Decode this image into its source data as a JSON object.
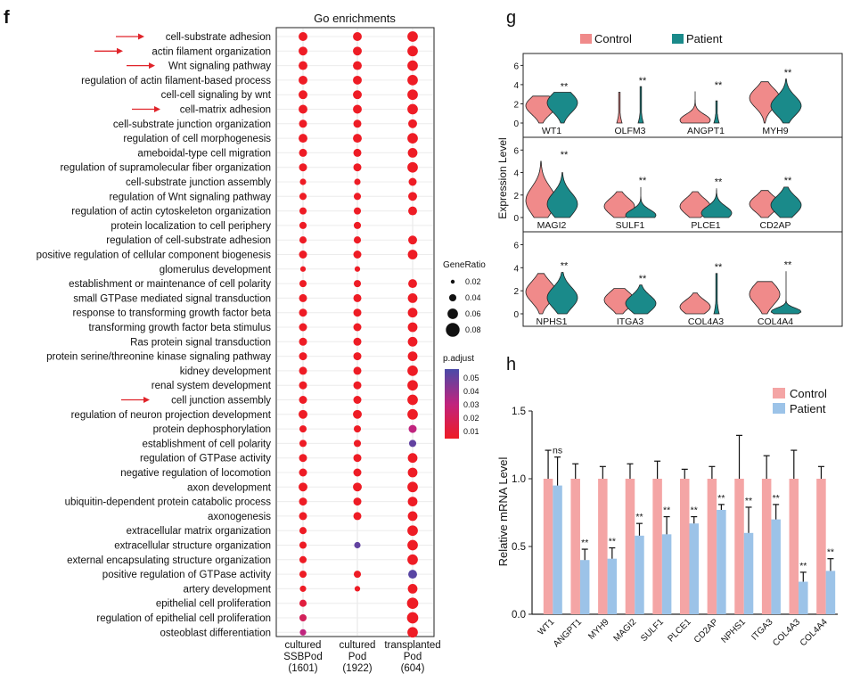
{
  "colors": {
    "control": "#f08a8a",
    "patient": "#1a8a8a",
    "patient_bar": "#9cc3e8",
    "control_bar": "#f4a5a5",
    "dot_low": "#ee1c25",
    "dot_high": "#4a4aa8",
    "arrow": "#e0242a"
  },
  "panel_f": {
    "letter": "f",
    "title": "Go enrichments",
    "columns": [
      {
        "line1": "cultured",
        "line2": "SSBPod",
        "line3": "(1601)"
      },
      {
        "line1": "cultured",
        "line2": "Pod",
        "line3": "(1922)"
      },
      {
        "line1": "transplanted",
        "line2": "Pod",
        "line3": "(604)"
      }
    ],
    "legend_size": {
      "title": "GeneRatio",
      "labels": [
        "0.02",
        "0.04",
        "0.06",
        "0.08"
      ]
    },
    "legend_color": {
      "title": "p.adjust",
      "labels": [
        "0.05",
        "0.04",
        "0.03",
        "0.02",
        "0.01"
      ]
    },
    "chart_data": {
      "type": "dotplot",
      "title": "Go enrichments",
      "terms": [
        "cell-substrate adhesion",
        "actin filament organization",
        "Wnt signaling pathway",
        "regulation of actin filament-based process",
        "cell-cell signaling by wnt",
        "cell-matrix adhesion",
        "cell-substrate junction organization",
        "regulation of cell morphogenesis",
        "ameboidal-type cell migration",
        "regulation of supramolecular fiber organization",
        "cell-substrate junction assembly",
        "regulation of Wnt signaling pathway",
        "regulation of actin cytoskeleton organization",
        "protein localization to cell periphery",
        "regulation of cell-substrate adhesion",
        "positive regulation of cellular component biogenesis",
        "glomerulus development",
        "establishment or maintenance of cell polarity",
        "small GTPase mediated signal transduction",
        "response to transforming growth factor beta",
        "transforming growth factor beta stimulus",
        "Ras protein signal transduction",
        "protein serine/threonine kinase signaling pathway",
        "kidney development",
        "renal system development",
        "cell junction assembly",
        "regulation of neuron projection development",
        "protein dephosphorylation",
        "establishment of cell polarity",
        "regulation of GTPase activity",
        "negative regulation of locomotion",
        "axon development",
        "ubiquitin-dependent protein catabolic process",
        "axonogenesis",
        "extracellular matrix organization",
        "extracellular structure organization",
        "external encapsulating structure organization",
        "positive regulation of GTPase activity",
        "artery development",
        "epithelial cell proliferation",
        "regulation of epithelial cell proliferation",
        "osteoblast differentiation"
      ],
      "arrow_terms": [
        0,
        1,
        2,
        5,
        25
      ],
      "gene_ratio": [
        [
          0.05,
          0.05,
          0.06
        ],
        [
          0.05,
          0.05,
          0.06
        ],
        [
          0.05,
          0.05,
          0.06
        ],
        [
          0.05,
          0.05,
          0.06
        ],
        [
          0.05,
          0.05,
          0.06
        ],
        [
          0.05,
          0.05,
          0.06
        ],
        [
          0.045,
          0.045,
          0.05
        ],
        [
          0.05,
          0.05,
          0.06
        ],
        [
          0.045,
          0.045,
          0.055
        ],
        [
          0.045,
          0.045,
          0.06
        ],
        [
          0.035,
          0.035,
          0.045
        ],
        [
          0.04,
          0.04,
          0.05
        ],
        [
          0.04,
          0.04,
          0.05
        ],
        [
          0.04,
          0.04,
          null
        ],
        [
          0.04,
          0.04,
          0.05
        ],
        [
          0.045,
          0.045,
          0.055
        ],
        [
          0.03,
          0.03,
          null
        ],
        [
          0.04,
          0.04,
          0.05
        ],
        [
          0.045,
          0.045,
          0.055
        ],
        [
          0.045,
          0.045,
          0.055
        ],
        [
          0.045,
          0.045,
          0.055
        ],
        [
          0.045,
          0.045,
          0.055
        ],
        [
          0.045,
          0.045,
          0.055
        ],
        [
          0.045,
          0.045,
          0.06
        ],
        [
          0.045,
          0.045,
          0.06
        ],
        [
          0.045,
          0.045,
          0.06
        ],
        [
          0.05,
          0.05,
          0.06
        ],
        [
          0.04,
          0.04,
          0.045
        ],
        [
          0.04,
          0.04,
          0.04
        ],
        [
          0.045,
          0.045,
          0.055
        ],
        [
          0.045,
          0.045,
          0.055
        ],
        [
          0.05,
          0.05,
          0.06
        ],
        [
          0.045,
          0.045,
          0.055
        ],
        [
          0.045,
          0.045,
          0.055
        ],
        [
          0.04,
          null,
          0.06
        ],
        [
          0.04,
          0.035,
          0.06
        ],
        [
          0.04,
          null,
          0.06
        ],
        [
          0.04,
          0.04,
          0.05
        ],
        [
          0.035,
          0.03,
          0.055
        ],
        [
          0.04,
          null,
          0.065
        ],
        [
          0.04,
          null,
          0.065
        ],
        [
          0.035,
          null,
          0.06
        ]
      ],
      "p_adjust": [
        [
          0.005,
          0.005,
          0.005
        ],
        [
          0.005,
          0.005,
          0.005
        ],
        [
          0.005,
          0.005,
          0.005
        ],
        [
          0.005,
          0.005,
          0.005
        ],
        [
          0.005,
          0.005,
          0.005
        ],
        [
          0.005,
          0.005,
          0.005
        ],
        [
          0.005,
          0.005,
          0.005
        ],
        [
          0.005,
          0.005,
          0.005
        ],
        [
          0.005,
          0.005,
          0.005
        ],
        [
          0.005,
          0.005,
          0.005
        ],
        [
          0.005,
          0.005,
          0.005
        ],
        [
          0.005,
          0.005,
          0.005
        ],
        [
          0.005,
          0.005,
          0.005
        ],
        [
          0.005,
          0.005,
          null
        ],
        [
          0.005,
          0.005,
          0.005
        ],
        [
          0.005,
          0.005,
          0.005
        ],
        [
          0.005,
          0.005,
          null
        ],
        [
          0.005,
          0.005,
          0.005
        ],
        [
          0.005,
          0.005,
          0.005
        ],
        [
          0.005,
          0.005,
          0.005
        ],
        [
          0.005,
          0.005,
          0.005
        ],
        [
          0.005,
          0.005,
          0.005
        ],
        [
          0.005,
          0.005,
          0.005
        ],
        [
          0.005,
          0.005,
          0.005
        ],
        [
          0.005,
          0.005,
          0.005
        ],
        [
          0.005,
          0.005,
          0.005
        ],
        [
          0.005,
          0.005,
          0.005
        ],
        [
          0.005,
          0.005,
          0.03
        ],
        [
          0.005,
          0.005,
          0.05
        ],
        [
          0.005,
          0.005,
          0.005
        ],
        [
          0.005,
          0.005,
          0.005
        ],
        [
          0.005,
          0.005,
          0.005
        ],
        [
          0.005,
          0.005,
          0.005
        ],
        [
          0.005,
          0.005,
          0.005
        ],
        [
          0.005,
          null,
          0.005
        ],
        [
          0.005,
          0.05,
          0.005
        ],
        [
          0.005,
          null,
          0.005
        ],
        [
          0.005,
          0.005,
          0.052
        ],
        [
          0.005,
          0.005,
          0.005
        ],
        [
          0.012,
          null,
          0.005
        ],
        [
          0.02,
          null,
          0.005
        ],
        [
          0.03,
          null,
          0.005
        ]
      ]
    }
  },
  "panel_g": {
    "letter": "g",
    "ylabel": "Expression Level",
    "legend": {
      "control": "Control",
      "patient": "Patient"
    },
    "yticks": [
      "6",
      "4",
      "2",
      "0"
    ],
    "chart_data": {
      "type": "violin",
      "ylim": [
        0,
        6.5
      ],
      "groups": [
        "Control",
        "Patient"
      ],
      "genes": [
        {
          "name": "WT1",
          "sig": "**",
          "control": {
            "center": 1.8,
            "spread": 0.9,
            "max": 2.8
          },
          "patient": {
            "center": 2.1,
            "spread": 1.0,
            "max": 3.2
          }
        },
        {
          "name": "OLFM3",
          "sig": "**",
          "control": {
            "center": 0,
            "spread": 0.02,
            "max": 3.2,
            "thin": true
          },
          "patient": {
            "center": 0.3,
            "spread": 0.3,
            "max": 3.8,
            "thin": true
          }
        },
        {
          "name": "ANGPT1",
          "sig": "**",
          "control": {
            "center": 0.3,
            "spread": 0.6,
            "max": 3.3
          },
          "patient": {
            "center": 0,
            "spread": 0.05,
            "max": 2.3,
            "thin": true
          }
        },
        {
          "name": "MYH9",
          "sig": "**",
          "control": {
            "center": 2.6,
            "spread": 1.0,
            "max": 4.3
          },
          "patient": {
            "center": 1.8,
            "spread": 1.0,
            "max": 4.6
          }
        },
        {
          "name": "MAGI2",
          "sig": "**",
          "control": {
            "center": 1.5,
            "spread": 1.2,
            "max": 5.0
          },
          "patient": {
            "center": 1.2,
            "spread": 1.0,
            "max": 4.0
          }
        },
        {
          "name": "SULF1",
          "sig": "**",
          "control": {
            "center": 1.0,
            "spread": 0.7,
            "max": 2.3
          },
          "patient": {
            "center": 0.2,
            "spread": 0.5,
            "max": 2.7
          }
        },
        {
          "name": "PLCE1",
          "sig": "**",
          "control": {
            "center": 1.0,
            "spread": 0.7,
            "max": 2.3
          },
          "patient": {
            "center": 0.4,
            "spread": 0.6,
            "max": 2.6
          }
        },
        {
          "name": "CD2AP",
          "sig": "**",
          "control": {
            "center": 1.2,
            "spread": 0.7,
            "max": 2.4
          },
          "patient": {
            "center": 1.1,
            "spread": 0.8,
            "max": 2.7
          }
        },
        {
          "name": "NPHS1",
          "sig": "**",
          "control": {
            "center": 1.9,
            "spread": 0.9,
            "max": 3.5
          },
          "patient": {
            "center": 1.4,
            "spread": 0.9,
            "max": 3.6
          }
        },
        {
          "name": "ITGA3",
          "sig": "**",
          "control": {
            "center": 1.2,
            "spread": 0.7,
            "max": 2.2
          },
          "patient": {
            "center": 0.9,
            "spread": 0.7,
            "max": 2.5
          }
        },
        {
          "name": "COL4A3",
          "sig": "**",
          "control": {
            "center": 0.6,
            "spread": 0.6,
            "max": 1.8
          },
          "patient": {
            "center": 0,
            "spread": 0.05,
            "max": 3.5,
            "thin": true
          }
        },
        {
          "name": "COL4A4",
          "sig": "**",
          "control": {
            "center": 1.7,
            "spread": 0.9,
            "max": 2.8
          },
          "patient": {
            "center": 0.2,
            "spread": 0.3,
            "max": 3.7
          }
        }
      ]
    }
  },
  "panel_h": {
    "letter": "h",
    "legend": {
      "control": "Control",
      "patient": "Patient"
    },
    "chart_data": {
      "type": "bar",
      "title": "",
      "ylabel": "Relative mRNA Level",
      "xlabel": "",
      "ylim": [
        0,
        1.5
      ],
      "yticks": [
        "0.0",
        "0.5",
        "1.0",
        "1.5"
      ],
      "categories": [
        "WT1",
        "ANGPT1",
        "MYH9",
        "MAGI2",
        "SULF1",
        "PLCE1",
        "CD2AP",
        "NPHS1",
        "ITGA3",
        "COL4A3",
        "COL4A4"
      ],
      "series": [
        {
          "name": "Control",
          "values": [
            1,
            1,
            1,
            1,
            1,
            1,
            1,
            1,
            1,
            1,
            1
          ],
          "errors": [
            0.21,
            0.11,
            0.09,
            0.11,
            0.13,
            0.07,
            0.09,
            0.32,
            0.17,
            0.21,
            0.09
          ]
        },
        {
          "name": "Patient",
          "values": [
            0.95,
            0.4,
            0.41,
            0.58,
            0.59,
            0.67,
            0.77,
            0.6,
            0.7,
            0.24,
            0.32
          ],
          "errors": [
            0.21,
            0.08,
            0.08,
            0.09,
            0.13,
            0.05,
            0.04,
            0.19,
            0.11,
            0.07,
            0.09
          ]
        }
      ],
      "significance": [
        "ns",
        "**",
        "**",
        "**",
        "**",
        "**",
        "**",
        "**",
        "**",
        "**",
        "**"
      ]
    }
  }
}
